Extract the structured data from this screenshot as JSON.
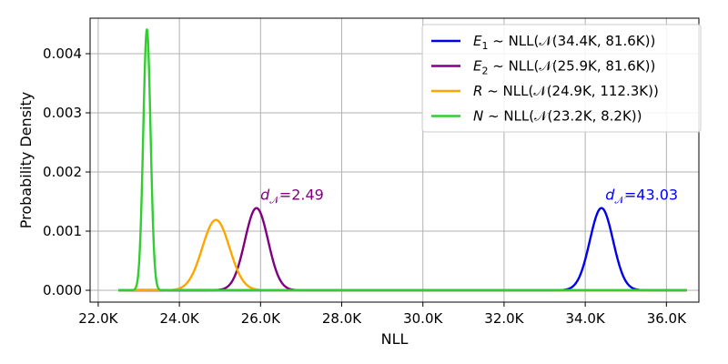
{
  "chart_data": {
    "type": "line",
    "title": "",
    "xlabel": "NLL",
    "ylabel": "Probability Density",
    "xlim": [
      21800,
      36800
    ],
    "ylim": [
      -0.0002,
      0.0046
    ],
    "grid": true,
    "legend_position": "top-right",
    "x_ticks": [
      22000,
      24000,
      26000,
      28000,
      30000,
      32000,
      34000,
      36000
    ],
    "x_tick_labels": [
      "22.0K",
      "24.0K",
      "26.0K",
      "28.0K",
      "30.0K",
      "32.0K",
      "34.0K",
      "36.0K"
    ],
    "y_ticks": [
      0,
      0.001,
      0.002,
      0.003,
      0.004
    ],
    "y_tick_labels": [
      "0.000",
      "0.001",
      "0.002",
      "0.003",
      "0.004"
    ],
    "x_range": [
      22500,
      36500
    ],
    "series": [
      {
        "key": "E1",
        "symbol": "E",
        "subscript": "1",
        "suffix": " ~ NLL(𝒩(34.4K, 81.6K))",
        "color": "#0000ee",
        "mean": 34400,
        "peak": 0.00139
      },
      {
        "key": "E2",
        "symbol": "E",
        "subscript": "2",
        "suffix": " ~ NLL(𝒩(25.9K, 81.6K))",
        "color": "#800080",
        "mean": 25900,
        "peak": 0.00139
      },
      {
        "key": "R",
        "symbol": "R",
        "subscript": "",
        "suffix": " ~ NLL(𝒩(24.9K, 112.3K))",
        "color": "#ffa500",
        "mean": 24900,
        "peak": 0.00119
      },
      {
        "key": "N",
        "symbol": "N",
        "subscript": "",
        "suffix": " ~ NLL(𝒩(23.2K, 8.2K))",
        "color": "#32cd32",
        "mean": 23200,
        "peak": 0.00441
      }
    ],
    "annotations": [
      {
        "prefix": "d",
        "subscript": "𝒩",
        "value": "=2.49",
        "color": "#800080",
        "x": 25950,
        "y": 0.00138
      },
      {
        "prefix": "d",
        "subscript": "𝒩",
        "value": "=43.03",
        "color": "#0000ee",
        "x": 34450,
        "y": 0.00138
      }
    ]
  }
}
